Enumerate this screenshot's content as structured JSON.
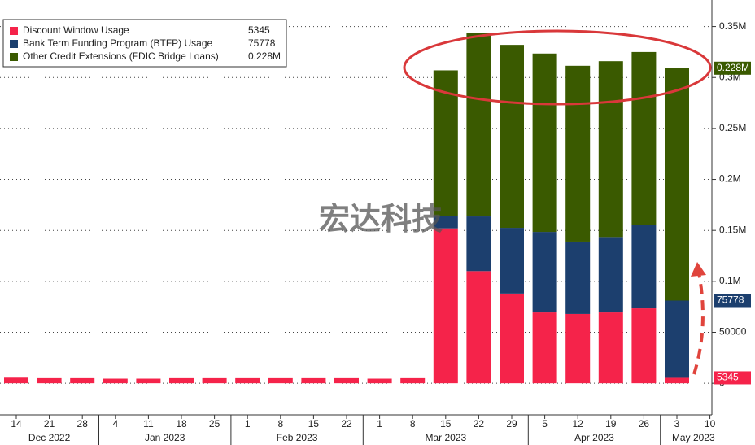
{
  "chart_data": {
    "type": "stacked-bar",
    "watermark": "宏达科技",
    "categories": [
      "14",
      "21",
      "28",
      "4",
      "11",
      "18",
      "25",
      "1",
      "8",
      "15",
      "22",
      "1",
      "8",
      "15",
      "22",
      "29",
      "5",
      "12",
      "19",
      "26",
      "3",
      "10"
    ],
    "groups": [
      {
        "label": "Dec 2022",
        "count": 3
      },
      {
        "label": "Jan 2023",
        "count": 4
      },
      {
        "label": "Feb 2023",
        "count": 4
      },
      {
        "label": "Mar 2023",
        "count": 5
      },
      {
        "label": "Apr 2023",
        "count": 4
      },
      {
        "label": "May 2023",
        "count": 2
      }
    ],
    "series": [
      {
        "name": "Discount Window Usage",
        "color": "#f5234a",
        "last_label": "5345",
        "values": [
          5500,
          5000,
          5000,
          4500,
          4500,
          5000,
          5000,
          5000,
          5000,
          5000,
          5000,
          4500,
          5000,
          152000,
          110000,
          88000,
          69500,
          68000,
          69500,
          73500,
          5345,
          null
        ]
      },
      {
        "name": "Bank Term Funding Program (BTFP) Usage",
        "color": "#1c3f6e",
        "last_label": "75778",
        "values": [
          0,
          0,
          0,
          0,
          0,
          0,
          0,
          0,
          0,
          0,
          0,
          0,
          0,
          12000,
          53700,
          64500,
          79000,
          71000,
          74000,
          81500,
          75778,
          null
        ]
      },
      {
        "name": "Other Credit Extensions (FDIC Bridge Loans)",
        "color": "#3a5a00",
        "last_label": "0.228M",
        "values": [
          0,
          0,
          0,
          0,
          0,
          0,
          0,
          0,
          0,
          0,
          0,
          0,
          0,
          143000,
          180000,
          179500,
          175000,
          172500,
          172500,
          170000,
          228000,
          null
        ]
      }
    ],
    "ylim": [
      -31000,
      376000
    ],
    "yticks": [
      0,
      50000,
      {
        "value": 100000,
        "label": "0.1M"
      },
      {
        "value": 150000,
        "label": "0.15M"
      },
      {
        "value": 200000,
        "label": "0.2M"
      },
      {
        "value": 250000,
        "label": "0.25M"
      },
      {
        "value": 300000,
        "label": "0.3M"
      },
      {
        "value": 350000,
        "label": "0.35M"
      }
    ],
    "grid": true
  }
}
